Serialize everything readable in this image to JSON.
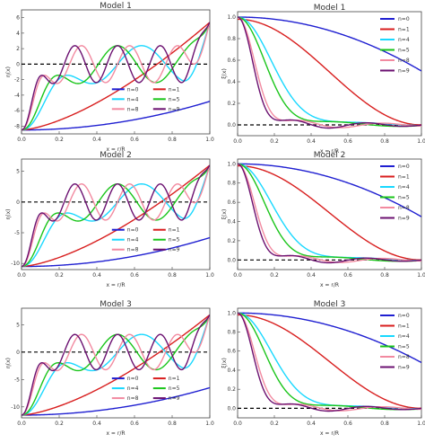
{
  "colors": {
    "n=0": "#1f1fd1",
    "n=1": "#d81e1e",
    "n=4": "#18d8ff",
    "n=5": "#1ac51a",
    "n=8": "#f28aa0",
    "n=9": "#6b1070",
    "dashed_zero": "#000000",
    "axes": "#444444"
  },
  "chart_data": [
    {
      "type": "line",
      "title": "Model 1",
      "xlabel": "x = r/R",
      "ylabel": "η(x)",
      "xlim": [
        0,
        1
      ],
      "ylim": [
        -9,
        7
      ],
      "xticks": [
        "0.0",
        "0.2",
        "0.4",
        "0.6",
        "0.8",
        "1.0"
      ],
      "yticks": [
        "-8",
        "-6",
        "-4",
        "-2",
        "0",
        "2",
        "4",
        "6"
      ],
      "legend": {
        "placement": "bottom-right",
        "columns": 2,
        "entries": [
          "n=0",
          "n=1",
          "n=4",
          "n=5",
          "n=8",
          "n=9"
        ]
      },
      "series": [
        {
          "name": "n=0",
          "kind": "n0",
          "start": -8.5,
          "end": -4.8
        },
        {
          "name": "n=1",
          "kind": "n1",
          "start": -8.5,
          "end": 5.4
        },
        {
          "name": "n=4",
          "kind": "eta",
          "k": 4,
          "start": -8.5,
          "end": 5.4
        },
        {
          "name": "n=5",
          "kind": "eta",
          "k": 5,
          "start": -8.5,
          "end": 5.4
        },
        {
          "name": "n=8",
          "kind": "eta",
          "k": 8,
          "start": -8.5,
          "end": 5.4
        },
        {
          "name": "n=9",
          "kind": "eta",
          "k": 9,
          "start": -8.5,
          "end": 5.4
        }
      ]
    },
    {
      "type": "line",
      "title": "Model 1",
      "xlabel": "x = r/R",
      "ylabel": "ξ(x)",
      "xlim": [
        0,
        1
      ],
      "ylim": [
        -0.1,
        1.05
      ],
      "xticks": [
        "0.0",
        "0.2",
        "0.4",
        "0.6",
        "0.8",
        "1.0"
      ],
      "yticks": [
        "0.0",
        "0.2",
        "0.4",
        "0.6",
        "0.8",
        "1.0"
      ],
      "legend": {
        "placement": "top-right",
        "columns": 1,
        "entries": [
          "n=0",
          "n=1",
          "n=4",
          "n=5",
          "n=8",
          "n=9"
        ]
      },
      "series": [
        {
          "name": "n=0",
          "kind": "xi0",
          "end": 0.5
        },
        {
          "name": "n=1",
          "kind": "xi1",
          "end": 0.02
        },
        {
          "name": "n=4",
          "kind": "xi",
          "k": 4
        },
        {
          "name": "n=5",
          "kind": "xi",
          "k": 5
        },
        {
          "name": "n=8",
          "kind": "xi",
          "k": 8
        },
        {
          "name": "n=9",
          "kind": "xi",
          "k": 9
        }
      ]
    },
    {
      "type": "line",
      "title": "Model 2",
      "xlabel": "x = r/R",
      "ylabel": "η(x)",
      "xlim": [
        0,
        1
      ],
      "ylim": [
        -11,
        7
      ],
      "xticks": [
        "0.0",
        "0.2",
        "0.4",
        "0.6",
        "0.8",
        "1.0"
      ],
      "yticks": [
        "-10",
        "-5",
        "0",
        "5"
      ],
      "legend": {
        "placement": "bottom-right",
        "columns": 2,
        "entries": [
          "n=0",
          "n=1",
          "n=4",
          "n=5",
          "n=8",
          "n=9"
        ]
      },
      "series": [
        {
          "name": "n=0",
          "kind": "n0",
          "start": -10.5,
          "end": -5.8
        },
        {
          "name": "n=1",
          "kind": "n1",
          "start": -10.5,
          "end": 6.0
        },
        {
          "name": "n=4",
          "kind": "eta",
          "k": 4,
          "start": -10.5,
          "end": 6.0
        },
        {
          "name": "n=5",
          "kind": "eta",
          "k": 5,
          "start": -10.5,
          "end": 6.0
        },
        {
          "name": "n=8",
          "kind": "eta",
          "k": 8,
          "start": -10.5,
          "end": 6.0
        },
        {
          "name": "n=9",
          "kind": "eta",
          "k": 9,
          "start": -10.5,
          "end": 6.0
        }
      ]
    },
    {
      "type": "line",
      "title": "Model 2",
      "xlabel": "x = r/R",
      "ylabel": "ξ(x)",
      "xlim": [
        0,
        1
      ],
      "ylim": [
        -0.1,
        1.05
      ],
      "xticks": [
        "0.0",
        "0.2",
        "0.4",
        "0.6",
        "0.8",
        "1.0"
      ],
      "yticks": [
        "0.0",
        "0.2",
        "0.4",
        "0.6",
        "0.8",
        "1.0"
      ],
      "legend": {
        "placement": "top-right",
        "columns": 1,
        "entries": [
          "n=0",
          "n=1",
          "n=4",
          "n=5",
          "n=8",
          "n=9"
        ]
      },
      "series": [
        {
          "name": "n=0",
          "kind": "xi0",
          "end": 0.45
        },
        {
          "name": "n=1",
          "kind": "xi1",
          "end": 0.02
        },
        {
          "name": "n=4",
          "kind": "xi",
          "k": 4
        },
        {
          "name": "n=5",
          "kind": "xi",
          "k": 5
        },
        {
          "name": "n=8",
          "kind": "xi",
          "k": 8
        },
        {
          "name": "n=9",
          "kind": "xi",
          "k": 9
        }
      ]
    },
    {
      "type": "line",
      "title": "Model 3",
      "xlabel": "x = r/R",
      "ylabel": "η(x)",
      "xlim": [
        0,
        1
      ],
      "ylim": [
        -12,
        8
      ],
      "xticks": [
        "0.0",
        "0.2",
        "0.4",
        "0.6",
        "0.8",
        "1.0"
      ],
      "yticks": [
        "-10",
        "-5",
        "0",
        "5"
      ],
      "legend": {
        "placement": "bottom-right",
        "columns": 2,
        "entries": [
          "n=0",
          "n=1",
          "n=4",
          "n=5",
          "n=8",
          "n=9"
        ]
      },
      "series": [
        {
          "name": "n=0",
          "kind": "n0",
          "start": -11.5,
          "end": -6.5
        },
        {
          "name": "n=1",
          "kind": "n1",
          "start": -11.5,
          "end": 6.8
        },
        {
          "name": "n=4",
          "kind": "eta",
          "k": 4,
          "start": -11.5,
          "end": 6.8
        },
        {
          "name": "n=5",
          "kind": "eta",
          "k": 5,
          "start": -11.5,
          "end": 6.8
        },
        {
          "name": "n=8",
          "kind": "eta",
          "k": 8,
          "start": -11.5,
          "end": 6.8
        },
        {
          "name": "n=9",
          "kind": "eta",
          "k": 9,
          "start": -11.5,
          "end": 6.8
        }
      ]
    },
    {
      "type": "line",
      "title": "Model 3",
      "xlabel": "x = r/R",
      "ylabel": "ξ(x)",
      "xlim": [
        0,
        1
      ],
      "ylim": [
        -0.1,
        1.05
      ],
      "xticks": [
        "0.0",
        "0.2",
        "0.4",
        "0.6",
        "0.8",
        "1.0"
      ],
      "yticks": [
        "0.0",
        "0.2",
        "0.4",
        "0.6",
        "0.8",
        "1.0"
      ],
      "legend": {
        "placement": "top-right",
        "columns": 1,
        "entries": [
          "n=0",
          "n=1",
          "n=4",
          "n=5",
          "n=8",
          "n=9"
        ]
      },
      "series": [
        {
          "name": "n=0",
          "kind": "xi0",
          "end": 0.48
        },
        {
          "name": "n=1",
          "kind": "xi1",
          "end": 0.02
        },
        {
          "name": "n=4",
          "kind": "xi",
          "k": 4
        },
        {
          "name": "n=5",
          "kind": "xi",
          "k": 5
        },
        {
          "name": "n=8",
          "kind": "xi",
          "k": 8
        },
        {
          "name": "n=9",
          "kind": "xi",
          "k": 9
        }
      ]
    }
  ]
}
